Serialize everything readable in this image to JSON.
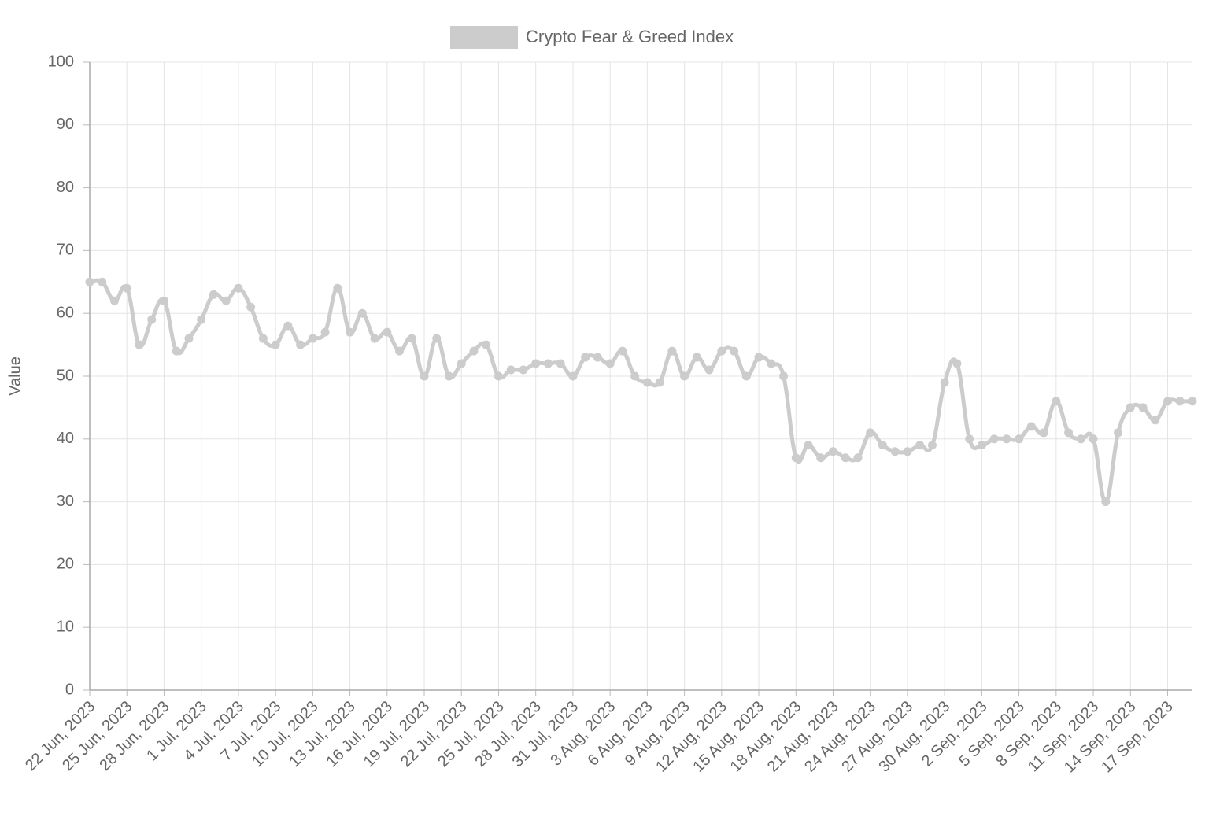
{
  "chart_data": {
    "type": "line",
    "y_label": "Value",
    "categories": [
      "22 Jun, 2023",
      null,
      null,
      "25 Jun, 2023",
      null,
      null,
      "28 Jun, 2023",
      null,
      null,
      "1 Jul, 2023",
      null,
      null,
      "4 Jul, 2023",
      null,
      null,
      "7 Jul, 2023",
      null,
      null,
      "10 Jul, 2023",
      null,
      null,
      "13 Jul, 2023",
      null,
      null,
      "16 Jul, 2023",
      null,
      null,
      "19 Jul, 2023",
      null,
      null,
      "22 Jul, 2023",
      null,
      null,
      "25 Jul, 2023",
      null,
      null,
      "28 Jul, 2023",
      null,
      null,
      "31 Jul, 2023",
      null,
      null,
      "3 Aug, 2023",
      null,
      null,
      "6 Aug, 2023",
      null,
      null,
      "9 Aug, 2023",
      null,
      null,
      "12 Aug, 2023",
      null,
      null,
      "15 Aug, 2023",
      null,
      null,
      "18 Aug, 2023",
      null,
      null,
      "21 Aug, 2023",
      null,
      null,
      "24 Aug, 2023",
      null,
      null,
      "27 Aug, 2023",
      null,
      null,
      "30 Aug, 2023",
      null,
      null,
      "2 Sep, 2023",
      null,
      null,
      "5 Sep, 2023",
      null,
      null,
      "8 Sep, 2023",
      null,
      null,
      "11 Sep, 2023",
      null,
      null,
      "14 Sep, 2023",
      null,
      null,
      "17 Sep, 2023",
      null,
      null
    ],
    "series": [
      {
        "name": "Crypto Fear & Greed Index",
        "color": "#cccccc",
        "values": [
          65,
          65,
          62,
          64,
          55,
          59,
          62,
          54,
          56,
          59,
          63,
          62,
          64,
          61,
          56,
          55,
          58,
          55,
          56,
          57,
          64,
          57,
          60,
          56,
          57,
          54,
          56,
          50,
          56,
          50,
          52,
          54,
          55,
          50,
          51,
          51,
          52,
          52,
          52,
          50,
          53,
          53,
          52,
          54,
          50,
          49,
          49,
          54,
          50,
          53,
          51,
          54,
          54,
          50,
          53,
          52,
          50,
          37,
          39,
          37,
          38,
          37,
          37,
          41,
          39,
          38,
          38,
          39,
          39,
          49,
          52,
          40,
          39,
          40,
          40,
          40,
          42,
          41,
          46,
          41,
          40,
          40,
          30,
          41,
          45,
          45,
          43,
          46,
          46,
          46
        ]
      }
    ],
    "ylim": [
      0,
      100
    ],
    "yticks": [
      0,
      10,
      20,
      30,
      40,
      50,
      60,
      70,
      80,
      90,
      100
    ],
    "grid": true,
    "legend": "top"
  }
}
